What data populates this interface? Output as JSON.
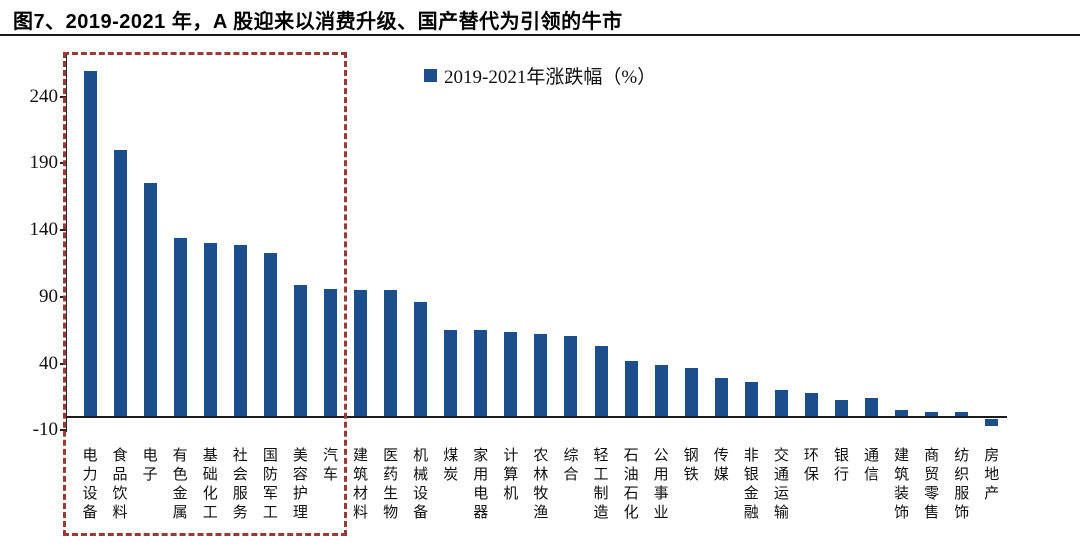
{
  "header": {
    "title": "图7、2019-2021 年，A 股迎来以消费升级、国产替代为引领的牛市"
  },
  "legend": {
    "label": "2019-2021年涨跌幅（%）",
    "marker_color": "#1b4e8a"
  },
  "colors": {
    "bar": "#1b4e8a",
    "axis": "#1b1b1b",
    "highlight_box": "#993a36",
    "background": "#ffffff"
  },
  "chart_data": {
    "type": "bar",
    "title": "图7、2019-2021 年，A 股迎来以消费升级、国产替代为引领的牛市",
    "legend_entries": [
      "2019-2021年涨跌幅（%）"
    ],
    "legend_position": "top-center",
    "grid": false,
    "xlabel": "",
    "ylabel": "",
    "ylim": [
      -10,
      270
    ],
    "yticks": [
      -10,
      40,
      90,
      140,
      190,
      240
    ],
    "categories": [
      "电力设备",
      "食品饮料",
      "电子",
      "有色金属",
      "基础化工",
      "社会服务",
      "国防军工",
      "美容护理",
      "汽车",
      "建筑材料",
      "医药生物",
      "机械设备",
      "煤炭",
      "家用电器",
      "计算机",
      "农林牧渔",
      "综合",
      "轻工制造",
      "石油石化",
      "公用事业",
      "钢铁",
      "传媒",
      "非银金融",
      "交通运输",
      "环保",
      "银行",
      "通信",
      "建筑装饰",
      "商贸零售",
      "纺织服饰",
      "房地产"
    ],
    "values": [
      259,
      200,
      175,
      134,
      130,
      129,
      123,
      99,
      96,
      95,
      95,
      86,
      65,
      65,
      64,
      62,
      61,
      53,
      42,
      39,
      37,
      29,
      26,
      20,
      18,
      13,
      14,
      5,
      4,
      4,
      -5
    ],
    "annotation": {
      "type": "dashed-box-highlight",
      "from_category": "电力设备",
      "to_category": "汽车",
      "color": "#993a36"
    }
  }
}
